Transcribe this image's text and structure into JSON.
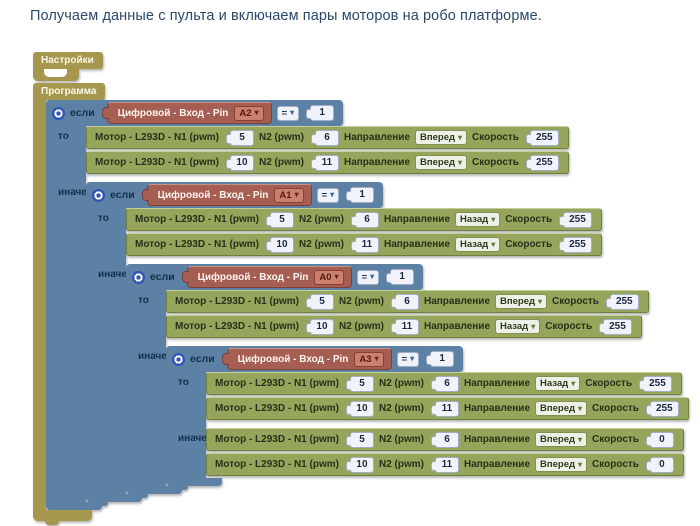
{
  "title": "Получаем данные с пульта и включаем пары моторов на робо платформе.",
  "colors": {
    "olive": "#a5984e",
    "blue": "#5c81a5",
    "green": "#95a55b",
    "red": "#a75e52",
    "canvas": "#ffffff"
  },
  "icons": {
    "dropdown_arrow": "▾"
  },
  "blocks": {
    "settings_label": "Настройки",
    "program_label": "Программа",
    "if_label": "если",
    "then_label": "то",
    "else_label": "иначе"
  },
  "sensor": {
    "label": "Цифровой - Вход - Pin",
    "comparator": "=",
    "value": "1"
  },
  "motor": {
    "label": "Мотор - L293D - N1 (pwm)",
    "n2_label": "N2 (pwm)",
    "direction_label": "Направление",
    "speed_label": "Скорость"
  },
  "ifs": [
    {
      "pin": "A2",
      "then": [
        {
          "n1": "5",
          "n2": "6",
          "direction": "Вперед",
          "speed": "255"
        },
        {
          "n1": "10",
          "n2": "11",
          "direction": "Вперед",
          "speed": "255"
        }
      ]
    },
    {
      "pin": "A1",
      "then": [
        {
          "n1": "5",
          "n2": "6",
          "direction": "Назад",
          "speed": "255"
        },
        {
          "n1": "10",
          "n2": "11",
          "direction": "Назад",
          "speed": "255"
        }
      ]
    },
    {
      "pin": "A0",
      "then": [
        {
          "n1": "5",
          "n2": "6",
          "direction": "Вперед",
          "speed": "255"
        },
        {
          "n1": "10",
          "n2": "11",
          "direction": "Назад",
          "speed": "255"
        }
      ]
    },
    {
      "pin": "A3",
      "then": [
        {
          "n1": "5",
          "n2": "6",
          "direction": "Назад",
          "speed": "255"
        },
        {
          "n1": "10",
          "n2": "11",
          "direction": "Вперед",
          "speed": "255"
        }
      ]
    }
  ],
  "final_else": [
    {
      "n1": "5",
      "n2": "6",
      "direction": "Вперед",
      "speed": "0"
    },
    {
      "n1": "10",
      "n2": "11",
      "direction": "Вперед",
      "speed": "0"
    }
  ]
}
